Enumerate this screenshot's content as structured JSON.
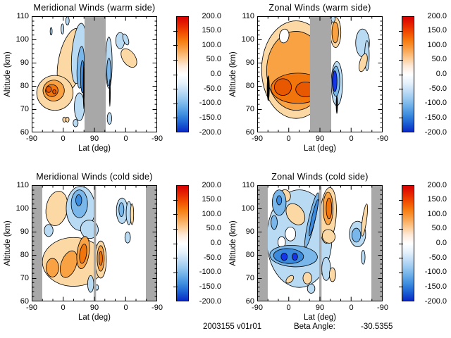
{
  "chart_data": {
    "type": "heatmap",
    "subtype": "filled-contour-multipanel",
    "description": "Four latitude-altitude filled contour cross-sections of winds (warm/cold side, meridional/zonal) with diverging red-blue colorbars; gray bands mark data gaps.",
    "axes": {
      "x_label": "Lat (deg)",
      "y_label": "Altitude (km)",
      "x_ticks": [
        "-90",
        "0",
        "90",
        "0",
        "-90"
      ],
      "y_ticks": [
        "110",
        "100",
        "90",
        "80",
        "70",
        "60"
      ],
      "x_range_note": "latitude runs -90 up to 90 then back to -90 (orbit fold)",
      "y_range": [
        60,
        110
      ]
    },
    "colorbar": {
      "tick_labels": [
        "200.0",
        "150.0",
        "100.0",
        "50.0",
        "0.0",
        "-50.0",
        "-100.0",
        "-150.0",
        "-200.0"
      ],
      "top_value": 200.0,
      "bottom_value": -200.0,
      "gradient": [
        "#d80000",
        "#e62500",
        "#f25200",
        "#f67f12",
        "#f9a34e",
        "#fcc88f",
        "#feeada",
        "#ffffff",
        "#e8f3fc",
        "#c2def6",
        "#97c8ef",
        "#67ace7",
        "#3a8ade",
        "#1b5fd3",
        "#0b2ac6"
      ]
    },
    "gray_band_color": "#a8a8a8",
    "levels": {
      "o1": {
        "color": "#fcd9a4",
        "approx_value": "+25 to +50"
      },
      "o2": {
        "color": "#f8a243",
        "approx_value": "+50 to +100"
      },
      "o3": {
        "color": "#f1750a",
        "approx_value": "+100 to +150"
      },
      "o4": {
        "color": "#e85800",
        "approx_value": "+150 to +200"
      },
      "b1": {
        "color": "#b9daf3",
        "approx_value": "-25 to -50"
      },
      "b2": {
        "color": "#79b6ea",
        "approx_value": "-50 to -100"
      },
      "b3": {
        "color": "#3a8ade",
        "approx_value": "-100 to -150"
      },
      "b4": {
        "color": "#1535e8",
        "approx_value": "-150 to -200"
      },
      "k": {
        "color": "#000000",
        "approx_value": "dense contour lines"
      },
      "w": {
        "color": "#ffffff",
        "approx_value": "near 0"
      }
    },
    "panels": [
      {
        "title": "Meridional Winds (warm side)",
        "gray_bands": [
          {
            "u0": 0.421,
            "u1": 0.59
          }
        ],
        "features": [
          {
            "l": "o1",
            "u": 0.315,
            "a": 91,
            "ru": 0.1,
            "ra": 14,
            "rot": 12
          },
          {
            "l": "o1",
            "u": 0.185,
            "a": 77,
            "ru": 0.145,
            "ra": 7.5,
            "rot": 0
          },
          {
            "l": "o2",
            "u": 0.175,
            "a": 78,
            "ru": 0.085,
            "ra": 4.5,
            "rot": -10
          },
          {
            "l": "o3",
            "u": 0.16,
            "a": 78,
            "ru": 0.05,
            "ra": 2.6,
            "rot": -10
          },
          {
            "l": "o4",
            "u": 0.135,
            "a": 78.5,
            "ru": 0.022,
            "ra": 1.3,
            "rot": 0
          },
          {
            "l": "o4",
            "u": 0.18,
            "a": 77.5,
            "ru": 0.013,
            "ra": 0.9,
            "rot": 0
          },
          {
            "l": "b1",
            "u": 0.375,
            "a": 94,
            "ru": 0.055,
            "ra": 13,
            "rot": 5
          },
          {
            "l": "b1",
            "u": 0.38,
            "a": 71,
            "ru": 0.04,
            "ra": 6,
            "rot": 0
          },
          {
            "l": "b2",
            "u": 0.39,
            "a": 88,
            "ru": 0.028,
            "ra": 9,
            "rot": 3
          },
          {
            "l": "b3",
            "u": 0.405,
            "a": 84,
            "ru": 0.016,
            "ra": 7,
            "rot": 0
          },
          {
            "l": "k",
            "u": 0.415,
            "a": 80,
            "ru": 0.007,
            "ra": 10,
            "rot": 0
          },
          {
            "l": "b1",
            "u": 0.285,
            "a": 108,
            "ru": 0.014,
            "ra": 1.8,
            "rot": 0
          },
          {
            "l": "b1",
            "u": 0.245,
            "a": 104.5,
            "ru": 0.011,
            "ra": 2.2,
            "rot": 0
          },
          {
            "l": "b1",
            "u": 0.155,
            "a": 103.5,
            "ru": 0.008,
            "ra": 1.6,
            "rot": 0
          },
          {
            "l": "b1",
            "u": 0.615,
            "a": 90,
            "ru": 0.026,
            "ra": 11,
            "rot": 0
          },
          {
            "l": "b2",
            "u": 0.615,
            "a": 86,
            "ru": 0.016,
            "ra": 6,
            "rot": 0
          },
          {
            "l": "k",
            "u": 0.623,
            "a": 77,
            "ru": 0.006,
            "ra": 6,
            "rot": 0
          },
          {
            "l": "b1",
            "u": 0.62,
            "a": 66,
            "ru": 0.018,
            "ra": 2.5,
            "rot": 0
          },
          {
            "l": "b1",
            "u": 0.705,
            "a": 99.5,
            "ru": 0.035,
            "ra": 3.5,
            "rot": 0
          },
          {
            "l": "b1",
            "u": 0.75,
            "a": 100,
            "ru": 0.02,
            "ra": 2.5,
            "rot": -20
          },
          {
            "l": "o1",
            "u": 0.775,
            "a": 92,
            "ru": 0.05,
            "ra": 4.5,
            "rot": -35
          },
          {
            "l": "o1",
            "u": 0.26,
            "a": 65.5,
            "ru": 0.013,
            "ra": 1.1,
            "rot": 0
          },
          {
            "l": "o1",
            "u": 0.285,
            "a": 65.5,
            "ru": 0.013,
            "ra": 1.1,
            "rot": 0
          },
          {
            "l": "b1",
            "u": 0.35,
            "a": 64,
            "ru": 0.02,
            "ra": 1.6,
            "rot": 0
          }
        ]
      },
      {
        "title": "Zonal Winds (warm side)",
        "gray_bands": [
          {
            "u0": 0.421,
            "u1": 0.59
          }
        ],
        "features": [
          {
            "l": "o1",
            "u": 0.31,
            "a": 87,
            "ru": 0.275,
            "ra": 21,
            "rot": 0
          },
          {
            "l": "o2",
            "u": 0.31,
            "a": 86.5,
            "ru": 0.235,
            "ra": 17,
            "rot": 0
          },
          {
            "l": "w",
            "u": 0.215,
            "a": 101.5,
            "ru": 0.038,
            "ra": 3,
            "rot": 10
          },
          {
            "l": "o3",
            "u": 0.325,
            "a": 79,
            "ru": 0.215,
            "ra": 6.5,
            "rot": 0
          },
          {
            "l": "o4",
            "u": 0.205,
            "a": 79.5,
            "ru": 0.068,
            "ra": 3.6,
            "rot": 0
          },
          {
            "l": "o4",
            "u": 0.385,
            "a": 78.5,
            "ru": 0.078,
            "ra": 3.2,
            "rot": 0
          },
          {
            "l": "k",
            "u": 0.088,
            "a": 79,
            "ru": 0.011,
            "ra": 5.5,
            "rot": 0
          },
          {
            "l": "k",
            "u": 0.555,
            "a": 80,
            "ru": 0.011,
            "ra": 6,
            "rot": 0
          },
          {
            "l": "o1",
            "u": 0.625,
            "a": 103,
            "ru": 0.042,
            "ra": 6.5,
            "rot": 0
          },
          {
            "l": "o2",
            "u": 0.622,
            "a": 103,
            "ru": 0.026,
            "ra": 4.5,
            "rot": 0
          },
          {
            "l": "b1",
            "u": 0.605,
            "a": 108.8,
            "ru": 0.016,
            "ra": 1.4,
            "rot": 0
          },
          {
            "l": "b1",
            "u": 0.635,
            "a": 81,
            "ru": 0.045,
            "ra": 9.5,
            "rot": 0
          },
          {
            "l": "b2",
            "u": 0.628,
            "a": 82,
            "ru": 0.03,
            "ra": 6.5,
            "rot": 0
          },
          {
            "l": "b4",
            "u": 0.618,
            "a": 82,
            "ru": 0.018,
            "ra": 4.5,
            "rot": 0
          },
          {
            "l": "k",
            "u": 0.635,
            "a": 72,
            "ru": 0.008,
            "ra": 4,
            "rot": 0
          },
          {
            "l": "b1",
            "u": 0.84,
            "a": 98.5,
            "ru": 0.055,
            "ra": 6,
            "rot": 0
          },
          {
            "l": "b1",
            "u": 0.875,
            "a": 93,
            "ru": 0.018,
            "ra": 6.5,
            "rot": 0
          },
          {
            "l": "o1",
            "u": 0.845,
            "a": 90,
            "ru": 0.028,
            "ra": 4,
            "rot": 15
          }
        ]
      },
      {
        "title": "Meridional Winds (cold side)",
        "gray_bands": [
          {
            "u0": 0.0,
            "u1": 0.084
          },
          {
            "u0": 0.494,
            "u1": 0.513
          },
          {
            "u0": 0.91,
            "u1": 1.0
          }
        ],
        "features": [
          {
            "l": "o1",
            "u": 0.2,
            "a": 100,
            "ru": 0.085,
            "ra": 7.5,
            "rot": 10
          },
          {
            "l": "b1",
            "u": 0.39,
            "a": 100,
            "ru": 0.115,
            "ra": 9.5,
            "rot": 0
          },
          {
            "l": "b1",
            "u": 0.46,
            "a": 91,
            "ru": 0.07,
            "ra": 4,
            "rot": -25
          },
          {
            "l": "b2",
            "u": 0.38,
            "a": 102,
            "ru": 0.065,
            "ra": 6,
            "rot": 0
          },
          {
            "l": "b3",
            "u": 0.375,
            "a": 103.5,
            "ru": 0.024,
            "ra": 2.4,
            "rot": 0
          },
          {
            "l": "b1",
            "u": 0.135,
            "a": 90.5,
            "ru": 0.035,
            "ra": 2.6,
            "rot": 0
          },
          {
            "l": "o1",
            "u": 0.335,
            "a": 77,
            "ru": 0.25,
            "ra": 10.5,
            "rot": 0
          },
          {
            "l": "o2",
            "u": 0.165,
            "a": 74.5,
            "ru": 0.05,
            "ra": 4,
            "rot": 0
          },
          {
            "l": "o2",
            "u": 0.295,
            "a": 76,
            "ru": 0.06,
            "ra": 6,
            "rot": 20
          },
          {
            "l": "o2",
            "u": 0.41,
            "a": 81,
            "ru": 0.048,
            "ra": 7,
            "rot": 8
          },
          {
            "l": "o3",
            "u": 0.41,
            "a": 80.5,
            "ru": 0.027,
            "ra": 4.2,
            "rot": 8
          },
          {
            "l": "o1",
            "u": 0.55,
            "a": 78,
            "ru": 0.045,
            "ra": 8,
            "rot": 0
          },
          {
            "l": "o2",
            "u": 0.55,
            "a": 78.5,
            "ru": 0.028,
            "ra": 5.5,
            "rot": 0
          },
          {
            "l": "o3",
            "u": 0.55,
            "a": 78.5,
            "ru": 0.014,
            "ra": 3,
            "rot": 0
          },
          {
            "l": "b1",
            "u": 0.47,
            "a": 67.5,
            "ru": 0.024,
            "ra": 3.6,
            "rot": 0
          },
          {
            "l": "b1",
            "u": 0.52,
            "a": 66,
            "ru": 0.012,
            "ra": 1.2,
            "rot": 0
          },
          {
            "l": "b1",
            "u": 0.72,
            "a": 99,
            "ru": 0.045,
            "ra": 5.5,
            "rot": 0
          },
          {
            "l": "b1",
            "u": 0.775,
            "a": 98,
            "ru": 0.022,
            "ra": 5,
            "rot": 0
          },
          {
            "l": "b2",
            "u": 0.715,
            "a": 99.5,
            "ru": 0.02,
            "ra": 3,
            "rot": 0
          },
          {
            "l": "o1",
            "u": 0.8,
            "a": 97.5,
            "ru": 0.013,
            "ra": 4.5,
            "rot": 0
          },
          {
            "l": "b1",
            "u": 0.765,
            "a": 87.5,
            "ru": 0.022,
            "ra": 2.4,
            "rot": 0
          }
        ]
      },
      {
        "title": "Zonal Winds (cold side)",
        "gray_bands": [
          {
            "u0": 0.0,
            "u1": 0.084
          },
          {
            "u0": 0.494,
            "u1": 0.513
          },
          {
            "u0": 0.91,
            "u1": 1.0
          }
        ],
        "features": [
          {
            "l": "b1",
            "u": 0.335,
            "a": 87,
            "ru": 0.26,
            "ra": 21,
            "rot": 0
          },
          {
            "l": "w",
            "u": 0.265,
            "a": 89,
            "ru": 0.042,
            "ra": 3,
            "rot": 0
          },
          {
            "l": "w",
            "u": 0.195,
            "a": 85.5,
            "ru": 0.03,
            "ra": 2.4,
            "rot": 0
          },
          {
            "l": "o1",
            "u": 0.305,
            "a": 97.5,
            "ru": 0.065,
            "ra": 5,
            "rot": -35
          },
          {
            "l": "o1",
            "u": 0.225,
            "a": 105.5,
            "ru": 0.04,
            "ra": 2.6,
            "rot": -15
          },
          {
            "l": "b2",
            "u": 0.175,
            "a": 102.5,
            "ru": 0.055,
            "ra": 5.5,
            "rot": 0
          },
          {
            "l": "b3",
            "u": 0.175,
            "a": 103.5,
            "ru": 0.02,
            "ra": 2,
            "rot": 0
          },
          {
            "l": "b2",
            "u": 0.135,
            "a": 94,
            "ru": 0.025,
            "ra": 3,
            "rot": 0
          },
          {
            "l": "b2",
            "u": 0.29,
            "a": 79.5,
            "ru": 0.19,
            "ra": 4.6,
            "rot": 3
          },
          {
            "l": "b3",
            "u": 0.25,
            "a": 79.5,
            "ru": 0.12,
            "ra": 3.2,
            "rot": 3
          },
          {
            "l": "b4",
            "u": 0.215,
            "a": 79.2,
            "ru": 0.025,
            "ra": 1.6,
            "rot": 0
          },
          {
            "l": "b4",
            "u": 0.3,
            "a": 79.2,
            "ru": 0.022,
            "ra": 1.5,
            "rot": 0
          },
          {
            "l": "b2",
            "u": 0.435,
            "a": 95,
            "ru": 0.026,
            "ra": 12,
            "rot": 13
          },
          {
            "l": "b3",
            "u": 0.45,
            "a": 96,
            "ru": 0.015,
            "ra": 8,
            "rot": 13
          },
          {
            "l": "o1",
            "u": 0.565,
            "a": 97,
            "ru": 0.065,
            "ra": 12,
            "rot": 4
          },
          {
            "l": "o2",
            "u": 0.565,
            "a": 100,
            "ru": 0.04,
            "ra": 7,
            "rot": 0
          },
          {
            "l": "o3",
            "u": 0.572,
            "a": 100,
            "ru": 0.022,
            "ra": 4.5,
            "rot": 0
          },
          {
            "l": "o1",
            "u": 0.57,
            "a": 88,
            "ru": 0.05,
            "ra": 3,
            "rot": -25
          },
          {
            "l": "b1",
            "u": 0.55,
            "a": 74,
            "ru": 0.035,
            "ra": 5,
            "rot": 0
          },
          {
            "l": "o1",
            "u": 0.26,
            "a": 69.5,
            "ru": 0.022,
            "ra": 2,
            "rot": 45
          },
          {
            "l": "o1",
            "u": 0.4,
            "a": 70,
            "ru": 0.035,
            "ra": 2.5,
            "rot": 0
          },
          {
            "l": "o1",
            "u": 0.6,
            "a": 71.5,
            "ru": 0.025,
            "ra": 3,
            "rot": 0
          },
          {
            "l": "b1",
            "u": 0.43,
            "a": 65.5,
            "ru": 0.03,
            "ra": 2,
            "rot": 0
          },
          {
            "l": "b1",
            "u": 0.8,
            "a": 89,
            "ru": 0.065,
            "ra": 5.5,
            "rot": 0
          },
          {
            "l": "b2",
            "u": 0.79,
            "a": 88.5,
            "ru": 0.035,
            "ra": 3,
            "rot": 0
          },
          {
            "l": "o1",
            "u": 0.855,
            "a": 95,
            "ru": 0.017,
            "ra": 7,
            "rot": 8
          },
          {
            "l": "b1",
            "u": 0.845,
            "a": 79,
            "ru": 0.015,
            "ra": 3,
            "rot": 0
          }
        ]
      }
    ]
  },
  "footer": {
    "product": "2003155 v01r01",
    "beta_label": "Beta Angle:",
    "beta_value": "-30.5355"
  }
}
